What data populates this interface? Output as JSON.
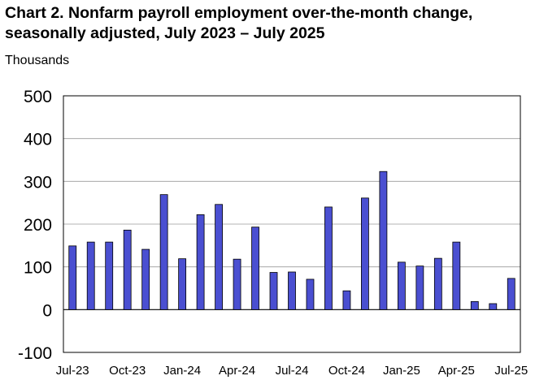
{
  "title": "Chart 2. Nonfarm payroll employment over-the-month change, seasonally adjusted, July 2023 – July 2025",
  "chart_data": {
    "type": "bar",
    "title": "Chart 2. Nonfarm payroll employment over-the-month change, seasonally adjusted, July 2023 – July 2025",
    "ylabel": "Thousands",
    "xlabel": "",
    "ylim": [
      -100,
      500
    ],
    "yticks": [
      "500",
      "400",
      "300",
      "200",
      "100",
      "0",
      "-100"
    ],
    "grid": true,
    "bar_color": "#4a4fd1",
    "categories": [
      "Jul-23",
      "Aug-23",
      "Sep-23",
      "Oct-23",
      "Nov-23",
      "Dec-23",
      "Jan-24",
      "Feb-24",
      "Mar-24",
      "Apr-24",
      "May-24",
      "Jun-24",
      "Jul-24",
      "Aug-24",
      "Sep-24",
      "Oct-24",
      "Nov-24",
      "Dec-24",
      "Jan-25",
      "Feb-25",
      "Mar-25",
      "Apr-25",
      "May-25",
      "Jun-25",
      "Jul-25"
    ],
    "xtick_labels": [
      "Jul-23",
      "Oct-23",
      "Jan-24",
      "Apr-24",
      "Jul-24",
      "Oct-24",
      "Jan-25",
      "Apr-25",
      "Jul-25"
    ],
    "values": [
      149,
      158,
      158,
      186,
      141,
      269,
      119,
      222,
      246,
      118,
      193,
      87,
      88,
      71,
      240,
      44,
      261,
      323,
      111,
      102,
      120,
      158,
      19,
      14,
      73
    ]
  }
}
